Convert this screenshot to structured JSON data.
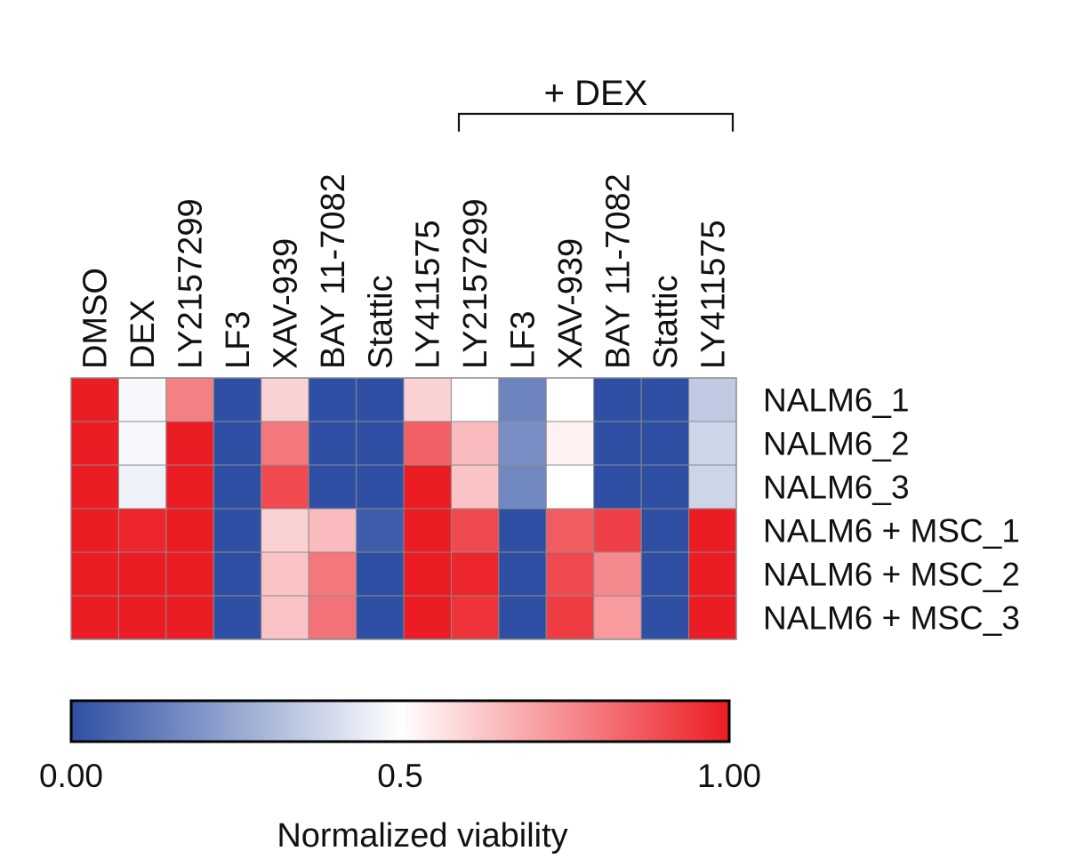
{
  "chart_data": {
    "type": "heatmap",
    "title": "",
    "group_bracket": {
      "label": "+ DEX",
      "start_column": 8,
      "end_column": 13
    },
    "columns": [
      "DMSO",
      "DEX",
      "LY2157299",
      "LF3",
      "XAV-939",
      "BAY 11-7082",
      "Stattic",
      "LY411575",
      "LY2157299",
      "LF3",
      "XAV-939",
      "BAY 11-7082",
      "Stattic",
      "LY411575"
    ],
    "rows": [
      "NALM6_1",
      "NALM6_2",
      "NALM6_3",
      "NALM6 + MSC_1",
      "NALM6 + MSC_2",
      "NALM6 + MSC_3"
    ],
    "values": [
      [
        1.0,
        0.48,
        0.78,
        0.0,
        0.6,
        0.0,
        0.0,
        0.6,
        0.5,
        0.15,
        0.5,
        0.0,
        0.0,
        0.35
      ],
      [
        1.0,
        0.48,
        1.0,
        0.0,
        0.8,
        0.0,
        0.0,
        0.85,
        0.65,
        0.18,
        0.53,
        0.0,
        0.0,
        0.38
      ],
      [
        1.0,
        0.46,
        1.0,
        0.0,
        0.9,
        0.0,
        0.0,
        1.0,
        0.63,
        0.16,
        0.5,
        0.0,
        0.0,
        0.38
      ],
      [
        1.0,
        0.98,
        1.0,
        0.0,
        0.6,
        0.65,
        0.04,
        1.0,
        0.9,
        0.0,
        0.86,
        0.92,
        0.0,
        1.0
      ],
      [
        1.0,
        1.0,
        1.0,
        0.0,
        0.63,
        0.8,
        0.0,
        1.0,
        0.98,
        0.0,
        0.9,
        0.76,
        0.0,
        1.0
      ],
      [
        1.0,
        1.0,
        1.0,
        0.0,
        0.63,
        0.81,
        0.0,
        1.0,
        0.95,
        0.0,
        0.93,
        0.72,
        0.0,
        1.0
      ]
    ],
    "colorbar": {
      "label": "Normalized viability",
      "min": 0.0,
      "mid": 0.5,
      "max": 1.0,
      "tick_values": [
        0.0,
        0.5,
        1.0
      ],
      "tick_labels": [
        "0.00",
        "0.5",
        "1.00"
      ],
      "low_color": "#2e4fa3",
      "mid_color": "#ffffff",
      "high_color": "#ec1c24"
    }
  }
}
